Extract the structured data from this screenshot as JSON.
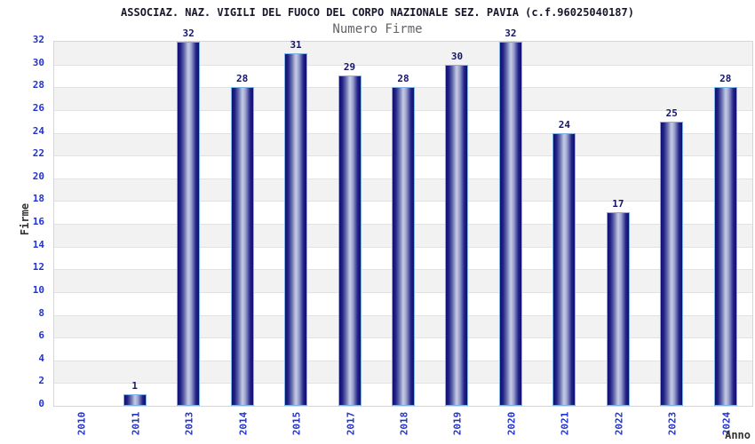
{
  "header": {
    "title": "ASSOCIAZ. NAZ. VIGILI DEL FUOCO DEL CORPO NAZIONALE SEZ. PAVIA (c.f.96025040187)",
    "subtitle": "Numero Firme"
  },
  "chart_data": {
    "type": "bar",
    "title": "Numero Firme",
    "categories": [
      "2010",
      "2011",
      "2013",
      "2014",
      "2015",
      "2017",
      "2018",
      "2019",
      "2020",
      "2021",
      "2022",
      "2023",
      "2024"
    ],
    "values": [
      0,
      1,
      32,
      28,
      31,
      29,
      28,
      30,
      32,
      24,
      17,
      25,
      28
    ],
    "xlabel": "Anno",
    "ylabel": "Firme",
    "ylim": [
      0,
      32
    ],
    "ytick_step": 2,
    "grid": true,
    "legend": "none",
    "bar_value_labels_shown": true,
    "notes": "No bars for missing years 2012 and 2016; 2010 has value 0 (no bar drawn, no value label)",
    "colors": {
      "bar_edge_dark": "#0f0f6e",
      "bar_center_light": "#c3c8e4",
      "bar_border": "#7fb0e8",
      "tick_label_blue": "#2233cc",
      "value_label_navy": "#15156b",
      "band_gray": "#f2f2f2",
      "band_white": "#ffffff",
      "grid_line": "#e2e2e2",
      "plot_border": "#d6d6d6",
      "title_color": "#16162e",
      "subtitle_color": "#636363",
      "axis_title_color": "#333333"
    }
  }
}
